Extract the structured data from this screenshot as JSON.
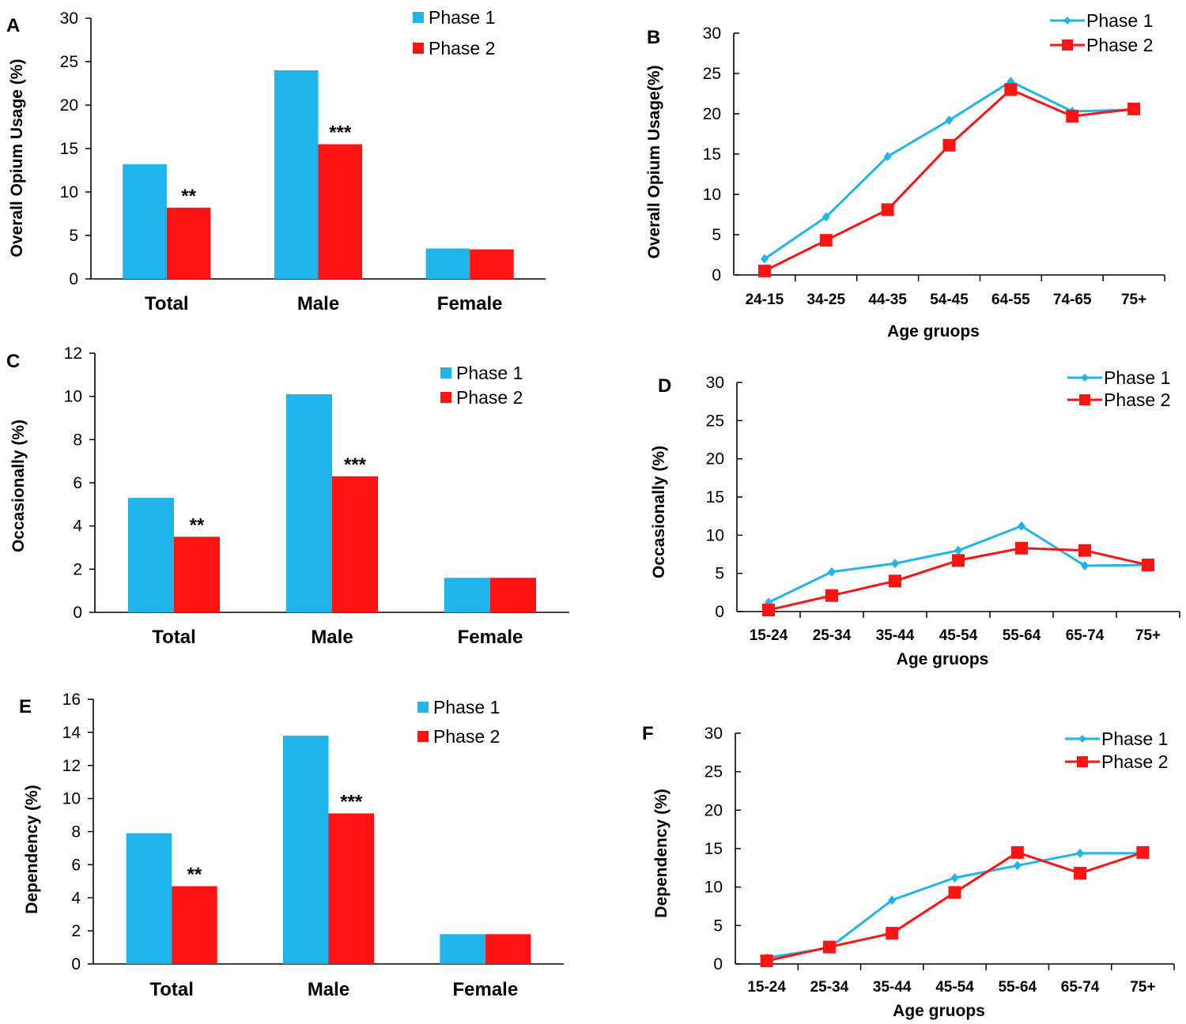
{
  "colors": {
    "phase1": "#1fb4ea",
    "phase2": "#ff1212",
    "axis": "#000000"
  },
  "legend_labels": [
    "Phase 1",
    "Phase 2"
  ],
  "chart_data": [
    {
      "panel": "A",
      "type": "bar",
      "ylabel": "Overall Opium Usage (%)",
      "ylim": [
        0,
        30
      ],
      "ystep": 5,
      "categories": [
        "Total",
        "Male",
        "Female"
      ],
      "series": [
        {
          "name": "Phase 1",
          "values": [
            13.2,
            24.0,
            3.5
          ]
        },
        {
          "name": "Phase 2",
          "values": [
            8.2,
            15.5,
            3.4
          ]
        }
      ],
      "annotations": [
        "**",
        "***",
        ""
      ],
      "legend": "top-right"
    },
    {
      "panel": "B",
      "type": "line",
      "ylabel": "Overall Opium Usage(%)",
      "xlabel": "Age gruops",
      "ylim": [
        0,
        30
      ],
      "ystep": 5,
      "categories": [
        "24-15",
        "34-25",
        "44-35",
        "54-45",
        "64-55",
        "74-65",
        "75+"
      ],
      "series": [
        {
          "name": "Phase 1",
          "values": [
            2.0,
            7.2,
            14.7,
            19.2,
            24.0,
            20.3,
            20.5
          ]
        },
        {
          "name": "Phase 2",
          "values": [
            0.5,
            4.3,
            8.1,
            16.1,
            23.0,
            19.7,
            20.6
          ]
        }
      ],
      "legend": "top-right"
    },
    {
      "panel": "C",
      "type": "bar",
      "ylabel": "Occasionally (%)",
      "ylim": [
        0,
        12
      ],
      "ystep": 2,
      "categories": [
        "Total",
        "Male",
        "Female"
      ],
      "series": [
        {
          "name": "Phase 1",
          "values": [
            5.3,
            10.1,
            1.6
          ]
        },
        {
          "name": "Phase 2",
          "values": [
            3.5,
            6.3,
            1.6
          ]
        }
      ],
      "annotations": [
        "**",
        "***",
        ""
      ],
      "legend": "top-right"
    },
    {
      "panel": "D",
      "type": "line",
      "ylabel": "Occasionally (%)",
      "xlabel": "Age gruops",
      "ylim": [
        0,
        30
      ],
      "ystep": 5,
      "categories": [
        "15-24",
        "25-34",
        "35-44",
        "45-54",
        "55-64",
        "65-74",
        "75+"
      ],
      "series": [
        {
          "name": "Phase 1",
          "values": [
            1.2,
            5.2,
            6.3,
            8.0,
            11.2,
            6.0,
            6.1
          ]
        },
        {
          "name": "Phase 2",
          "values": [
            0.2,
            2.1,
            4.0,
            6.7,
            8.3,
            8.0,
            6.1
          ]
        }
      ],
      "legend": "top-right"
    },
    {
      "panel": "E",
      "type": "bar",
      "ylabel": "Dependency (%)",
      "ylim": [
        0,
        16
      ],
      "ystep": 2,
      "categories": [
        "Total",
        "Male",
        "Female"
      ],
      "series": [
        {
          "name": "Phase 1",
          "values": [
            7.9,
            13.8,
            1.8
          ]
        },
        {
          "name": "Phase 2",
          "values": [
            4.7,
            9.1,
            1.8
          ]
        }
      ],
      "annotations": [
        "**",
        "***",
        ""
      ],
      "legend": "top-right"
    },
    {
      "panel": "F",
      "type": "line",
      "ylabel": "Dependency (%)",
      "xlabel": "Age gruops",
      "ylim": [
        0,
        30
      ],
      "ystep": 5,
      "categories": [
        "15-24",
        "25-34",
        "35-44",
        "45-54",
        "55-64",
        "65-74",
        "75+"
      ],
      "series": [
        {
          "name": "Phase 1",
          "values": [
            0.8,
            2.1,
            8.3,
            11.2,
            12.8,
            14.4,
            14.4
          ]
        },
        {
          "name": "Phase 2",
          "values": [
            0.4,
            2.2,
            4.0,
            9.3,
            14.5,
            11.8,
            14.5
          ]
        }
      ],
      "legend": "top-right"
    }
  ]
}
